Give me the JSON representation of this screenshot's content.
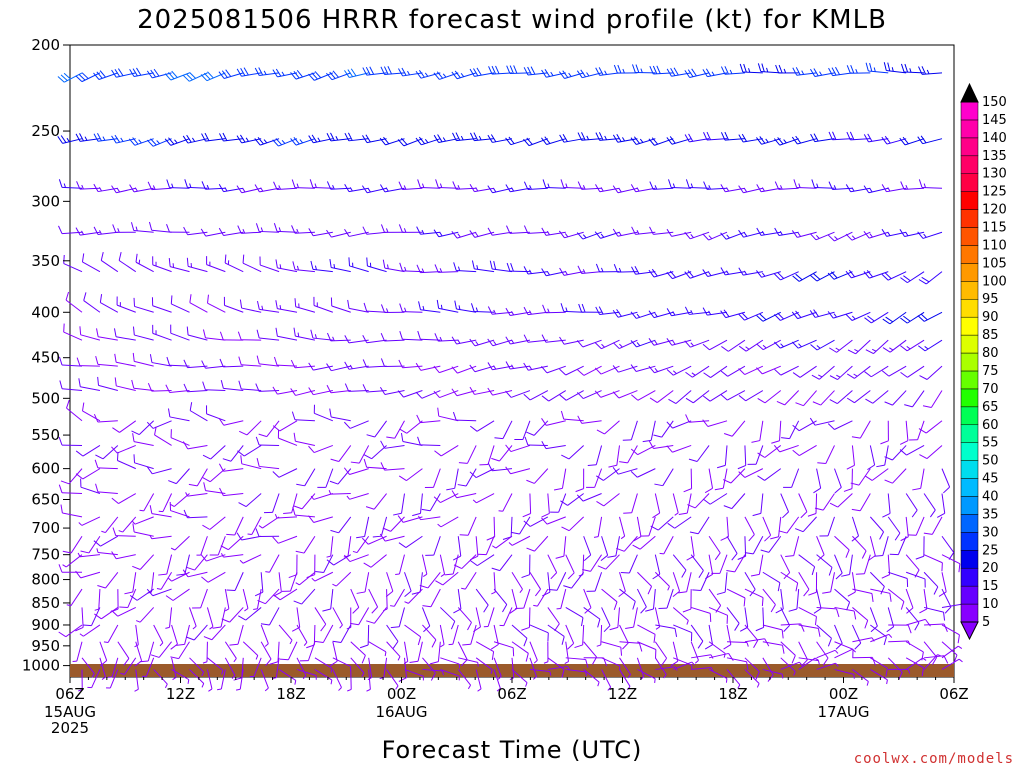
{
  "title": "2025081506 HRRR forecast wind profile (kt) for KMLB",
  "credit": "coolwx.com/models",
  "credit_color": "#d03030",
  "chart_data": {
    "type": "wind-barb-time-height",
    "title": "2025081506 HRRR forecast wind profile (kt) for KMLB",
    "xlabel": "Forecast Time (UTC)",
    "ylabel": "",
    "x_ticks": [
      "06Z",
      "12Z",
      "18Z",
      "00Z",
      "06Z",
      "12Z",
      "18Z",
      "00Z",
      "06Z"
    ],
    "x_date_labels": [
      {
        "tick": 0,
        "lines": [
          "15AUG",
          "2025"
        ]
      },
      {
        "tick": 3,
        "lines": [
          "16AUG"
        ]
      },
      {
        "tick": 7,
        "lines": [
          "17AUG"
        ]
      }
    ],
    "x_range_hours": [
      0,
      48
    ],
    "y_ticks": [
      200,
      250,
      300,
      350,
      400,
      450,
      500,
      550,
      600,
      650,
      700,
      750,
      800,
      850,
      900,
      950,
      1000
    ],
    "y_unit": "hPa",
    "y_scale": "log",
    "y_range": [
      200,
      1030
    ],
    "terrain_color": "#9b5a2b",
    "colorbar": {
      "unit": "kt",
      "levels": [
        5,
        10,
        15,
        20,
        25,
        30,
        35,
        40,
        45,
        50,
        55,
        60,
        65,
        70,
        75,
        80,
        85,
        90,
        95,
        100,
        105,
        110,
        115,
        120,
        125,
        130,
        135,
        140,
        145,
        150
      ],
      "colors": [
        "#8800ff",
        "#6600ff",
        "#3300ff",
        "#0000ee",
        "#0033ff",
        "#0066ff",
        "#0099ff",
        "#00bbff",
        "#00ddee",
        "#00ffcc",
        "#00ff99",
        "#00ff55",
        "#22ff00",
        "#66ff00",
        "#aaff00",
        "#ddff00",
        "#ffff00",
        "#ffdd00",
        "#ffbb00",
        "#ff9900",
        "#ff7700",
        "#ff5500",
        "#ff3300",
        "#ff0000",
        "#ff0044",
        "#ff0066",
        "#ff0088",
        "#ff00aa",
        "#ff00cc",
        "#ff00ee"
      ]
    },
    "wind_rows": [
      {
        "p": 215,
        "dir_start": 250,
        "dir_end": 270,
        "spd_start": 30,
        "spd_end": 25
      },
      {
        "p": 255,
        "dir_start": 255,
        "dir_end": 260,
        "spd_start": 25,
        "spd_end": 20
      },
      {
        "p": 290,
        "dir_start": 265,
        "dir_end": 265,
        "spd_start": 15,
        "spd_end": 15
      },
      {
        "p": 325,
        "dir_start": 270,
        "dir_end": 250,
        "spd_start": 12,
        "spd_end": 15
      },
      {
        "p": 360,
        "dir_start": 300,
        "dir_end": 240,
        "spd_start": 12,
        "spd_end": 20
      },
      {
        "p": 400,
        "dir_start": 300,
        "dir_end": 240,
        "spd_start": 10,
        "spd_end": 20
      },
      {
        "p": 430,
        "dir_start": 290,
        "dir_end": 230,
        "spd_start": 10,
        "spd_end": 15
      },
      {
        "p": 460,
        "dir_start": 280,
        "dir_end": 230,
        "spd_start": 10,
        "spd_end": 12
      },
      {
        "p": 490,
        "dir_start": 280,
        "dir_end": 220,
        "spd_start": 10,
        "spd_end": 10
      },
      {
        "p": 530,
        "dir_start": 270,
        "dir_end": 210,
        "spd_start": 10,
        "spd_end": 10
      },
      {
        "p": 565,
        "dir_start": 270,
        "dir_end": 200,
        "spd_start": 10,
        "spd_end": 10
      },
      {
        "p": 600,
        "dir_start": 260,
        "dir_end": 190,
        "spd_start": 10,
        "spd_end": 10
      },
      {
        "p": 640,
        "dir_start": 250,
        "dir_end": 180,
        "spd_start": 8,
        "spd_end": 10
      },
      {
        "p": 680,
        "dir_start": 260,
        "dir_end": 170,
        "spd_start": 8,
        "spd_end": 10
      },
      {
        "p": 715,
        "dir_start": 250,
        "dir_end": 160,
        "spd_start": 8,
        "spd_end": 10
      },
      {
        "p": 750,
        "dir_start": 240,
        "dir_end": 150,
        "spd_start": 8,
        "spd_end": 10
      },
      {
        "p": 785,
        "dir_start": 230,
        "dir_end": 140,
        "spd_start": 8,
        "spd_end": 10
      },
      {
        "p": 820,
        "dir_start": 220,
        "dir_end": 130,
        "spd_start": 8,
        "spd_end": 10
      },
      {
        "p": 860,
        "dir_start": 210,
        "dir_end": 120,
        "spd_start": 8,
        "spd_end": 10
      },
      {
        "p": 900,
        "dir_start": 200,
        "dir_end": 110,
        "spd_start": 8,
        "spd_end": 10
      },
      {
        "p": 940,
        "dir_start": 190,
        "dir_end": 100,
        "spd_start": 8,
        "spd_end": 8
      },
      {
        "p": 980,
        "dir_start": 180,
        "dir_end": 90,
        "spd_start": 5,
        "spd_end": 8
      },
      {
        "p": 1010,
        "dir_start": 170,
        "dir_end": 80,
        "spd_start": 5,
        "spd_end": 5
      }
    ]
  }
}
